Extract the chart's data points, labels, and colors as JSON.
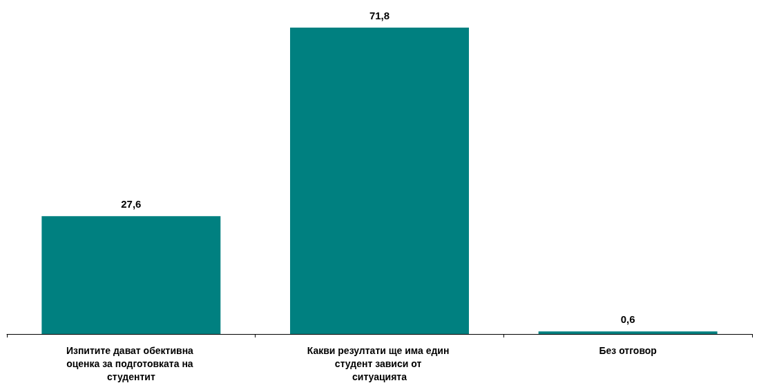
{
  "chart_data": {
    "type": "bar",
    "categories": [
      "Изпитите дават обективна оценка за подготовката на студентит",
      "Какви резултати ще има един студент зависи от ситуацията",
      "Без отговор"
    ],
    "values": [
      27.6,
      71.8,
      0.6
    ],
    "value_labels": [
      "27,6",
      "71,8",
      "0,6"
    ],
    "color": "#008080"
  }
}
